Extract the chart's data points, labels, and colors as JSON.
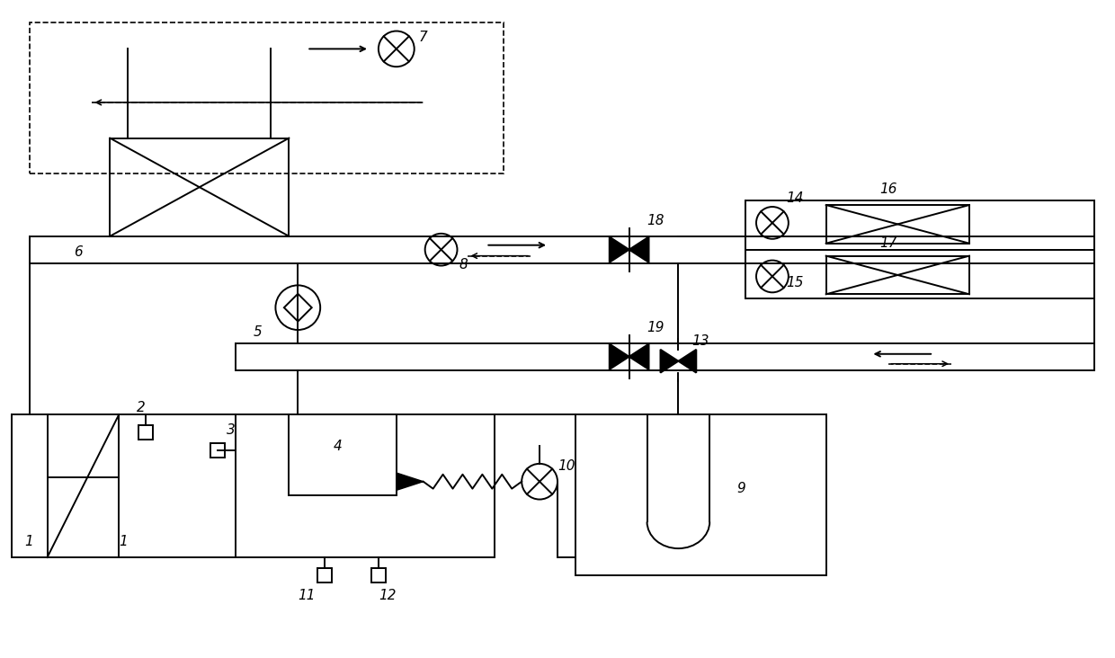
{
  "bg_color": "#ffffff",
  "lc": "#000000",
  "lw": 1.4,
  "fig_w": 12.4,
  "fig_h": 7.32,
  "dpi": 100
}
